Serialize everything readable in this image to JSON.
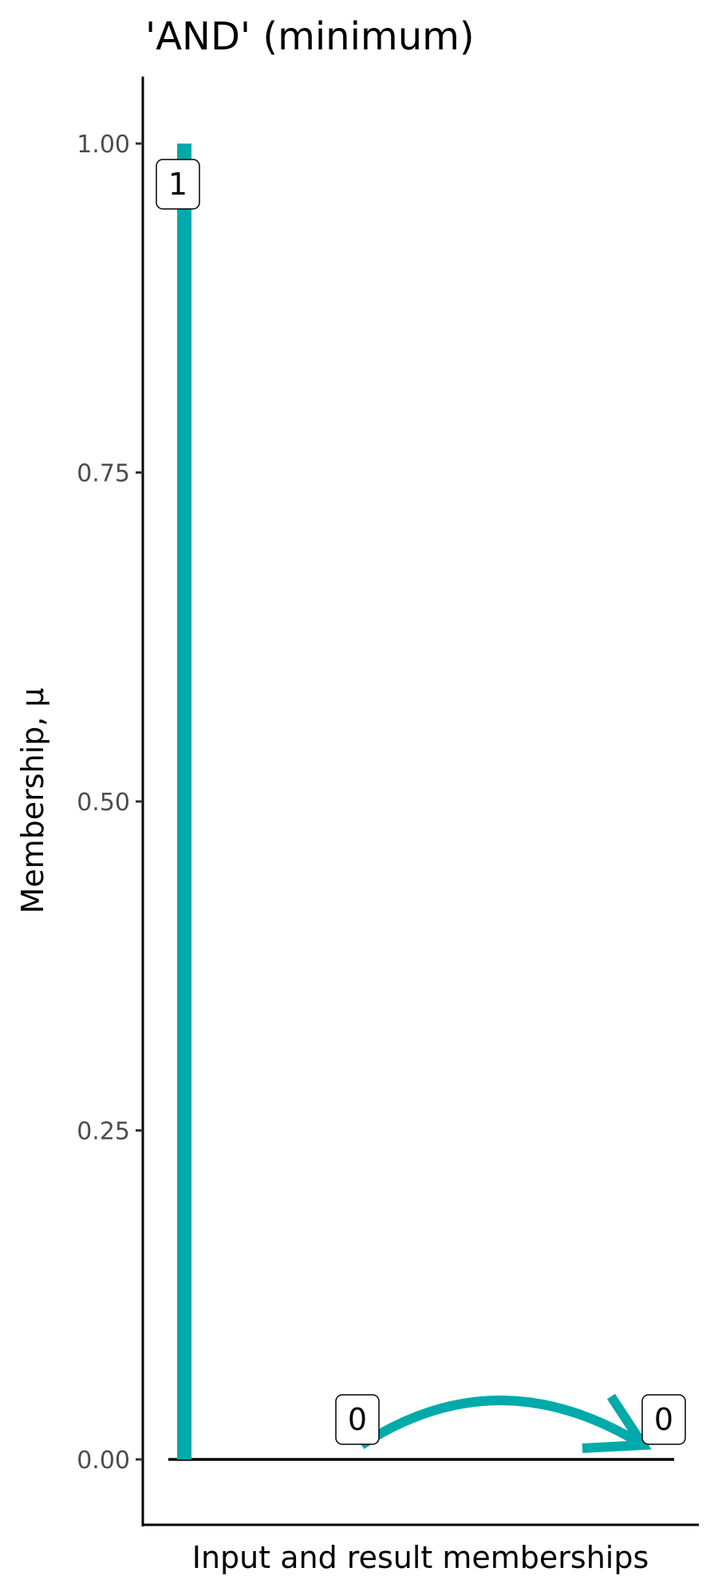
{
  "chart_data": {
    "type": "bar",
    "title": "'AND' (minimum)",
    "xlabel": "Input and result memberships",
    "ylabel": "Membership, μ",
    "ylim": [
      -0.05,
      1.05
    ],
    "yticks": [
      0,
      0.25,
      0.5,
      0.75,
      1
    ],
    "ytick_labels": [
      "0.00",
      "0.25",
      "0.50",
      "0.75",
      "1.00"
    ],
    "grid": false,
    "color": "#00AAAA",
    "values": [
      1,
      0,
      0
    ],
    "data_labels": [
      "1",
      "0",
      "0"
    ],
    "arrow": {
      "from_index": 1,
      "to_index": 2
    }
  }
}
